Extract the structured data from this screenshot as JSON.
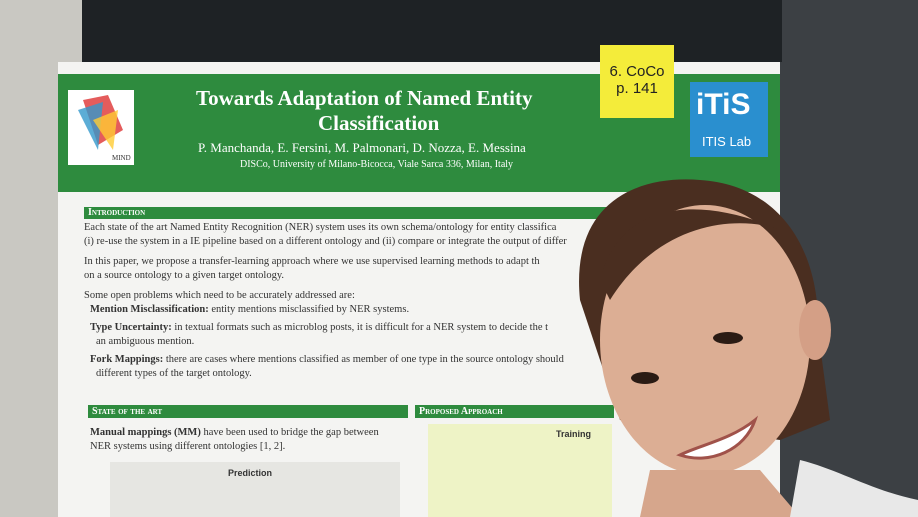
{
  "poster": {
    "title_line1": "Towards Adaptation of Named Entity",
    "title_line2": "Classification",
    "authors": "P. Manchanda, E. Fersini, M. Palmonari, D. Nozza, E. Messina",
    "affiliation": "DISCo, University of Milano-Bicocca, Viale Sarca 336, Milan, Italy",
    "logo_left": "MIND",
    "logo_right": "ITIS Lab",
    "sticky_note": [
      "6. CoCo",
      "p. 141"
    ],
    "introduction": {
      "heading": "Introduction",
      "lines": [
        "Each state of the art Named Entity Recognition (NER) system uses its own schema/ontology for entity classifica",
        "(i) re-use the system in a IE pipeline based on a different ontology and (ii) compare or integrate the output of differ",
        "In this paper, we propose a transfer-learning approach where we use supervised learning methods to adapt th",
        "on a source ontology to a given target ontology.",
        "Some open problems which need to be accurately addressed are:"
      ],
      "bullets": [
        {
          "label": "Mention Misclassification:",
          "text": "entity mentions misclassified by NER systems."
        },
        {
          "label": "Type Uncertainty:",
          "text": "in textual formats such as microblog posts, it is difficult for a NER system to decide the t",
          "continued": "an ambiguous mention."
        },
        {
          "label": "Fork Mappings:",
          "text": "there are cases where mentions classified as member of one type in the source ontology should",
          "continued": "different types of the target ontology."
        }
      ]
    },
    "state_of_the_art": {
      "heading": "State of the art",
      "label": "Manual mappings (MM)",
      "line1": "have been used to bridge the gap between",
      "line2": "NER systems using different ontologies [1, 2].",
      "figure_title": "Prediction"
    },
    "proposed_approach": {
      "heading": "Proposed Approach",
      "figure_title": "Training"
    }
  }
}
